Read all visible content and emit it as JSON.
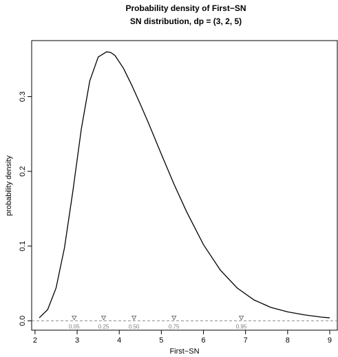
{
  "chart_data": {
    "type": "line",
    "title": "Probability density of First−SN",
    "subtitle": "SN distribution, dp = (3, 2, 5)",
    "xlabel": "First−SN",
    "ylabel": "probability density",
    "xlim": [
      1.92,
      9.18
    ],
    "ylim": [
      -0.0125,
      0.375
    ],
    "x_ticks": [
      2,
      3,
      4,
      5,
      6,
      7,
      8,
      9
    ],
    "x_tick_labels": [
      "2",
      "3",
      "4",
      "5",
      "6",
      "7",
      "8",
      "9"
    ],
    "y_ticks": [
      0.0,
      0.1,
      0.2,
      0.3
    ],
    "y_tick_labels": [
      "0.0",
      "0.1",
      "0.2",
      "0.3"
    ],
    "baseline": 0,
    "distribution": {
      "family": "SN",
      "xi": 3,
      "omega": 2,
      "alpha": 5
    },
    "series": [
      {
        "x": [
          2.1,
          2.3,
          2.5,
          2.7,
          2.9,
          3.1,
          3.3,
          3.5,
          3.7,
          3.8,
          3.9,
          4.1,
          4.3,
          4.5,
          4.7,
          5.0,
          5.3,
          5.6,
          6.0,
          6.4,
          6.8,
          7.2,
          7.6,
          8.0,
          8.4,
          8.8,
          9.0
        ],
        "y": [
          0.004,
          0.015,
          0.044,
          0.098,
          0.174,
          0.257,
          0.321,
          0.353,
          0.36,
          0.359,
          0.355,
          0.338,
          0.315,
          0.29,
          0.264,
          0.223,
          0.183,
          0.146,
          0.102,
          0.068,
          0.044,
          0.028,
          0.018,
          0.012,
          0.008,
          0.005,
          0.004
        ]
      }
    ],
    "quantiles": [
      {
        "label": "0.05",
        "x": 2.93
      },
      {
        "label": "0.25",
        "x": 3.63
      },
      {
        "label": "0.50",
        "x": 4.35
      },
      {
        "label": "0.75",
        "x": 5.3
      },
      {
        "label": "0.95",
        "x": 6.9
      }
    ]
  }
}
